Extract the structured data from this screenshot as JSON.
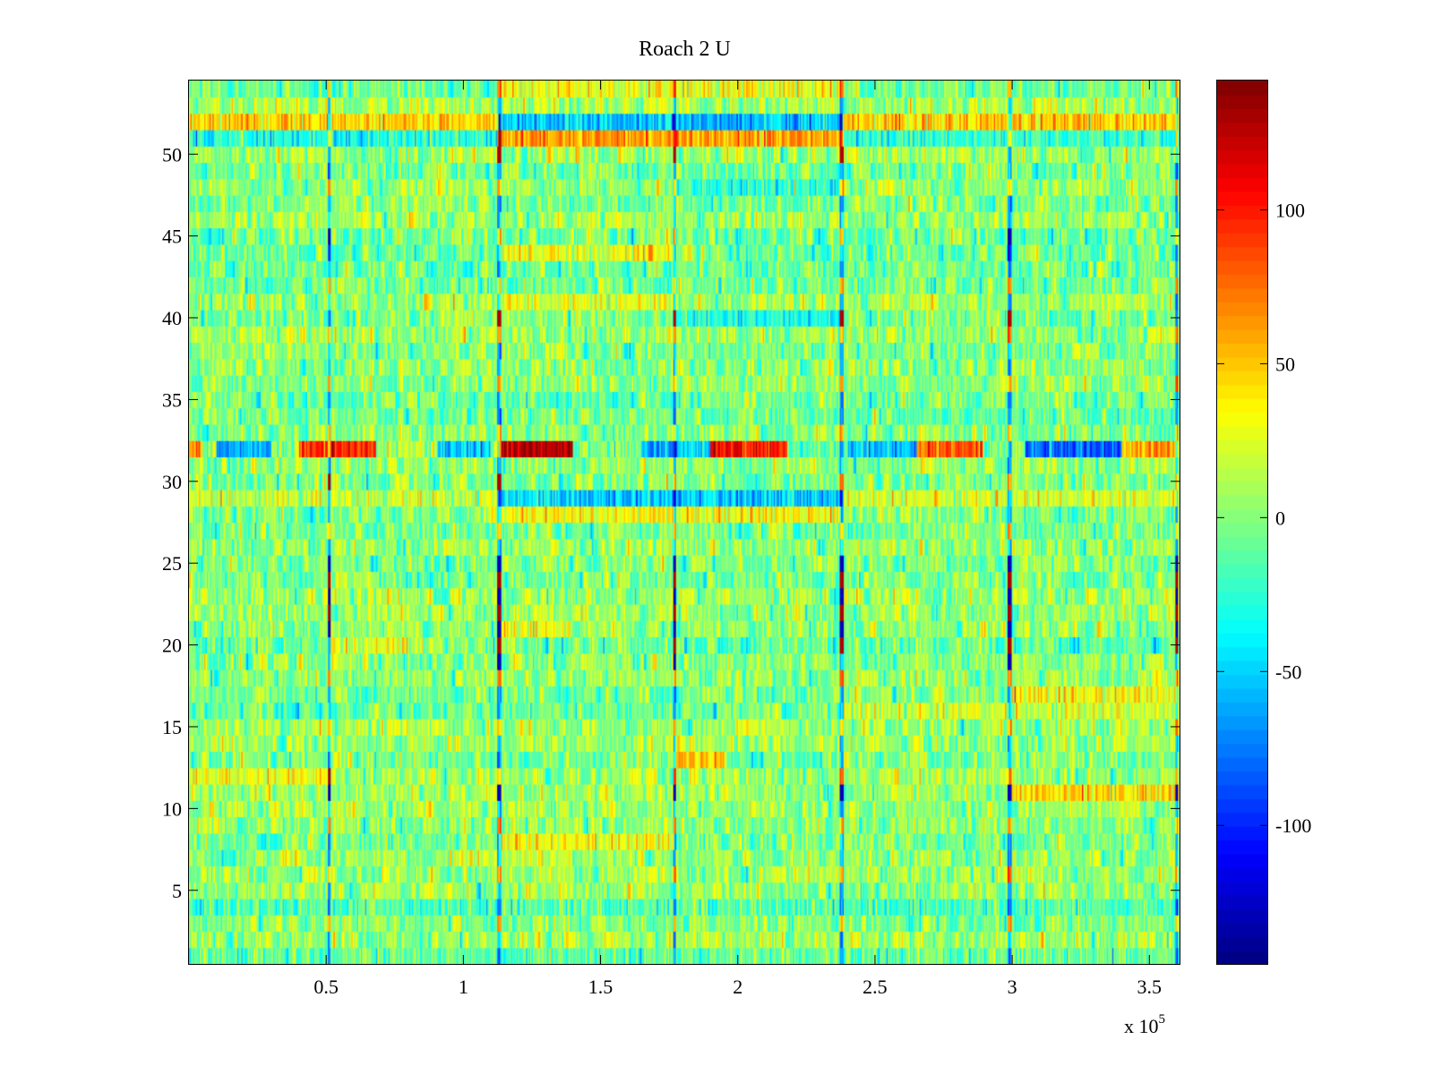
{
  "chart_data": {
    "type": "heatmap",
    "title": "Roach 2 U",
    "xlabel": "",
    "ylabel": "",
    "x_multiplier_label": {
      "base": "x 10",
      "exponent": "5"
    },
    "x_scale": 100000,
    "xlim": [
      0,
      3.61
    ],
    "ylim": [
      0.5,
      54.5
    ],
    "x_ticks": [
      0.5,
      1,
      1.5,
      2,
      2.5,
      3,
      3.5
    ],
    "x_tick_labels": [
      "0.5",
      "1",
      "1.5",
      "2",
      "2.5",
      "3",
      "3.5"
    ],
    "y_ticks": [
      5,
      10,
      15,
      20,
      25,
      30,
      35,
      40,
      45,
      50
    ],
    "y_tick_labels": [
      "5",
      "10",
      "15",
      "20",
      "25",
      "30",
      "35",
      "40",
      "45",
      "50"
    ],
    "rows": 54,
    "colormap": "jet",
    "clim": [
      -145,
      142
    ],
    "colorbar_ticks": [
      100,
      50,
      0,
      -50,
      -100
    ],
    "colorbar_tick_labels": [
      "100",
      "50",
      "0",
      "-50",
      "-100"
    ],
    "noise_std": 22,
    "vertical_events": [
      {
        "x": 0.51,
        "rows_strong": [
          11,
          12,
          21,
          22,
          23,
          24,
          25,
          30,
          45
        ]
      },
      {
        "x": 1.13,
        "rows_strong": [
          11,
          19,
          20,
          21,
          22,
          23,
          24,
          25,
          30,
          40,
          50
        ]
      },
      {
        "x": 1.77,
        "rows_strong": [
          11,
          19,
          20,
          21,
          22,
          23,
          24,
          25,
          40,
          50
        ]
      },
      {
        "x": 2.38,
        "rows_strong": [
          11,
          20,
          21,
          22,
          23,
          24,
          25,
          40,
          50
        ]
      },
      {
        "x": 2.99,
        "rows_strong": [
          11,
          19,
          20,
          21,
          22,
          23,
          24,
          25,
          40,
          45
        ]
      },
      {
        "x": 3.6,
        "rows_strong": [
          11,
          20,
          21,
          22,
          23,
          24,
          25
        ]
      }
    ],
    "row_band_segments": [
      {
        "row": 32,
        "x0": 0.0,
        "x1": 0.05,
        "value": 70
      },
      {
        "row": 32,
        "x0": 0.05,
        "x1": 0.4,
        "value": 5
      },
      {
        "row": 32,
        "x0": 0.1,
        "x1": 0.3,
        "value": -60
      },
      {
        "row": 32,
        "x0": 0.4,
        "x1": 0.68,
        "value": 95
      },
      {
        "row": 32,
        "x0": 0.68,
        "x1": 0.95,
        "value": 10
      },
      {
        "row": 32,
        "x0": 0.9,
        "x1": 1.1,
        "value": -55
      },
      {
        "row": 32,
        "x0": 1.13,
        "x1": 1.4,
        "value": 125
      },
      {
        "row": 32,
        "x0": 1.4,
        "x1": 1.65,
        "value": 0
      },
      {
        "row": 32,
        "x0": 1.65,
        "x1": 1.9,
        "value": -55
      },
      {
        "row": 32,
        "x0": 1.9,
        "x1": 2.18,
        "value": 100
      },
      {
        "row": 32,
        "x0": 2.18,
        "x1": 2.4,
        "value": -10
      },
      {
        "row": 32,
        "x0": 2.4,
        "x1": 2.65,
        "value": -55
      },
      {
        "row": 32,
        "x0": 2.65,
        "x1": 2.9,
        "value": 80
      },
      {
        "row": 32,
        "x0": 2.9,
        "x1": 3.05,
        "value": 0
      },
      {
        "row": 32,
        "x0": 3.05,
        "x1": 3.4,
        "value": -85
      },
      {
        "row": 32,
        "x0": 3.4,
        "x1": 3.61,
        "value": 55
      },
      {
        "row": 52,
        "x0": 0.0,
        "x1": 1.13,
        "value": 45
      },
      {
        "row": 52,
        "x0": 1.13,
        "x1": 2.38,
        "value": -55
      },
      {
        "row": 52,
        "x0": 2.38,
        "x1": 3.61,
        "value": 45
      },
      {
        "row": 51,
        "x0": 1.13,
        "x1": 2.38,
        "value": 60
      },
      {
        "row": 51,
        "x0": 0.0,
        "x1": 1.13,
        "value": -30
      },
      {
        "row": 51,
        "x0": 2.38,
        "x1": 3.61,
        "value": -25
      },
      {
        "row": 29,
        "x0": 1.13,
        "x1": 2.38,
        "value": -50
      },
      {
        "row": 29,
        "x0": 0.0,
        "x1": 1.13,
        "value": 20
      },
      {
        "row": 29,
        "x0": 2.38,
        "x1": 3.61,
        "value": 25
      },
      {
        "row": 28,
        "x0": 1.13,
        "x1": 2.38,
        "value": 35
      },
      {
        "row": 11,
        "x0": 2.99,
        "x1": 3.61,
        "value": 40
      },
      {
        "row": 17,
        "x0": 2.99,
        "x1": 3.61,
        "value": 35
      },
      {
        "row": 16,
        "x0": 2.38,
        "x1": 3.61,
        "value": 20
      },
      {
        "row": 13,
        "x0": 1.77,
        "x1": 1.95,
        "value": 55
      },
      {
        "row": 8,
        "x0": 1.13,
        "x1": 1.77,
        "value": 30
      },
      {
        "row": 7,
        "x0": 0.95,
        "x1": 1.4,
        "value": 20
      },
      {
        "row": 21,
        "x0": 1.13,
        "x1": 1.4,
        "value": 30
      },
      {
        "row": 12,
        "x0": 0.0,
        "x1": 0.51,
        "value": 30
      },
      {
        "row": 44,
        "x0": 1.13,
        "x1": 1.77,
        "value": 30
      },
      {
        "row": 41,
        "x0": 1.13,
        "x1": 1.77,
        "value": 25
      },
      {
        "row": 40,
        "x0": 1.77,
        "x1": 2.38,
        "value": -30
      },
      {
        "row": 54,
        "x0": 1.13,
        "x1": 2.38,
        "value": 30
      },
      {
        "row": 48,
        "x0": 1.77,
        "x1": 2.38,
        "value": -25
      },
      {
        "row": 20,
        "x0": 0.51,
        "x1": 0.85,
        "value": 25
      },
      {
        "row": 4,
        "x0": 0.0,
        "x1": 3.61,
        "value": -15
      },
      {
        "row": 1,
        "x0": 0.0,
        "x1": 3.61,
        "value": -10
      }
    ]
  }
}
